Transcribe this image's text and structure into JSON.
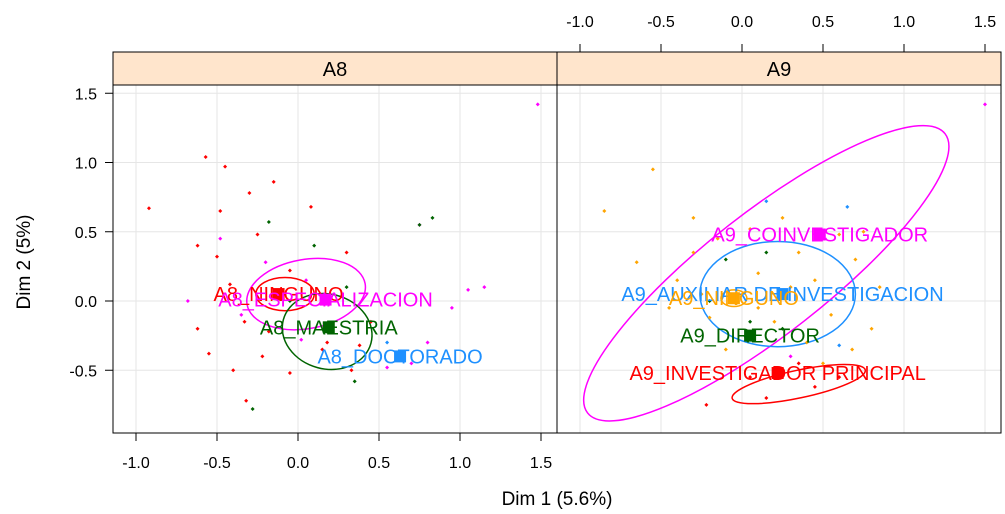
{
  "chart_data": {
    "type": "scatter",
    "xlabel": "Dim 1 (5.6%)",
    "ylabel": "Dim 2 (5%)",
    "grid": true,
    "panels": [
      {
        "name": "A8",
        "xlim": [
          -1.1,
          1.6
        ],
        "ylim": [
          -0.9,
          1.6
        ],
        "x_ticks": [
          -1.0,
          -0.5,
          0.0,
          0.5,
          1.0,
          1.5
        ],
        "x_tick_labels": [
          "-1.0",
          "-0.5",
          "0.0",
          "0.5",
          "1.0",
          "1.5"
        ],
        "x_ticks_position": "bottom",
        "categories": [
          {
            "label": "A8_NINGUNO",
            "x": -0.12,
            "y": 0.05,
            "color": "#ff0000",
            "ellipse": {
              "cx": -0.08,
              "cy": 0.05,
              "rx": 0.18,
              "ry": 0.12,
              "rot": 0
            }
          },
          {
            "label": "A8_ESPECIALIZACION",
            "x": 0.17,
            "y": 0.01,
            "color": "#ff00ff",
            "ellipse": {
              "cx": 0.05,
              "cy": 0.05,
              "rx": 0.37,
              "ry": 0.25,
              "rot": -10
            }
          },
          {
            "label": "A8_MAESTRIA",
            "x": 0.19,
            "y": -0.19,
            "color": "#006400",
            "ellipse": {
              "cx": 0.18,
              "cy": -0.22,
              "rx": 0.28,
              "ry": 0.27,
              "rot": 15
            }
          },
          {
            "label": "A8_DOCTORADO",
            "x": 0.63,
            "y": -0.4,
            "color": "#1e90ff",
            "ellipse": null
          }
        ],
        "points": [
          {
            "x": -0.92,
            "y": 0.67,
            "c": 0
          },
          {
            "x": -0.57,
            "y": 1.04,
            "c": 0
          },
          {
            "x": -0.45,
            "y": 0.97,
            "c": 0
          },
          {
            "x": -0.48,
            "y": 0.65,
            "c": 0
          },
          {
            "x": -0.3,
            "y": 0.78,
            "c": 0
          },
          {
            "x": -0.15,
            "y": 0.86,
            "c": 0
          },
          {
            "x": -0.62,
            "y": 0.4,
            "c": 0
          },
          {
            "x": -0.5,
            "y": 0.32,
            "c": 0
          },
          {
            "x": -0.25,
            "y": 0.48,
            "c": 0
          },
          {
            "x": 0.08,
            "y": 0.68,
            "c": 0
          },
          {
            "x": 0.3,
            "y": 0.35,
            "c": 0
          },
          {
            "x": -0.55,
            "y": -0.38,
            "c": 0
          },
          {
            "x": -0.4,
            "y": -0.5,
            "c": 0
          },
          {
            "x": -0.22,
            "y": -0.4,
            "c": 0
          },
          {
            "x": -0.33,
            "y": -0.15,
            "c": 0
          },
          {
            "x": -0.05,
            "y": -0.52,
            "c": 0
          },
          {
            "x": 0.15,
            "y": -0.35,
            "c": 0
          },
          {
            "x": 0.33,
            "y": -0.5,
            "c": 0
          },
          {
            "x": -0.32,
            "y": -0.72,
            "c": 0
          },
          {
            "x": 0.18,
            "y": -0.3,
            "c": 0
          },
          {
            "x": -0.05,
            "y": 0.22,
            "c": 0
          },
          {
            "x": -0.42,
            "y": 0.12,
            "c": 0
          },
          {
            "x": 0.45,
            "y": -0.15,
            "c": 0
          },
          {
            "x": 0.38,
            "y": -0.32,
            "c": 0
          },
          {
            "x": -0.62,
            "y": -0.2,
            "c": 0
          },
          {
            "x": -0.18,
            "y": -0.22,
            "c": 0
          },
          {
            "x": -0.48,
            "y": 0.45,
            "c": 1
          },
          {
            "x": -0.2,
            "y": 0.28,
            "c": 1
          },
          {
            "x": -0.68,
            "y": 0.0,
            "c": 1
          },
          {
            "x": -0.35,
            "y": -0.1,
            "c": 1
          },
          {
            "x": 0.02,
            "y": -0.28,
            "c": 1
          },
          {
            "x": 0.05,
            "y": 0.15,
            "c": 1
          },
          {
            "x": 0.7,
            "y": -0.45,
            "c": 1
          },
          {
            "x": 0.8,
            "y": -0.3,
            "c": 1
          },
          {
            "x": 0.95,
            "y": -0.05,
            "c": 1
          },
          {
            "x": 1.05,
            "y": 0.08,
            "c": 1
          },
          {
            "x": 1.15,
            "y": 0.1,
            "c": 1
          },
          {
            "x": 0.55,
            "y": -0.48,
            "c": 1
          },
          {
            "x": 0.75,
            "y": 0.55,
            "c": 1
          },
          {
            "x": 1.48,
            "y": 1.42,
            "c": 1
          },
          {
            "x": -0.18,
            "y": 0.57,
            "c": 2
          },
          {
            "x": 0.83,
            "y": 0.6,
            "c": 2
          },
          {
            "x": 0.75,
            "y": 0.55,
            "c": 2
          },
          {
            "x": 0.1,
            "y": 0.4,
            "c": 2
          },
          {
            "x": -0.28,
            "y": -0.78,
            "c": 2
          },
          {
            "x": 0.35,
            "y": -0.58,
            "c": 2
          },
          {
            "x": 0.3,
            "y": 0.1,
            "c": 2
          },
          {
            "x": -0.05,
            "y": 0.0,
            "c": 2
          },
          {
            "x": 0.55,
            "y": -0.3,
            "c": 3
          }
        ]
      },
      {
        "name": "A9",
        "xlim": [
          -1.1,
          1.6
        ],
        "ylim": [
          -0.9,
          1.6
        ],
        "x_ticks": [
          -1.0,
          -0.5,
          0.0,
          0.5,
          1.0,
          1.5
        ],
        "x_tick_labels": [
          "-1.0",
          "-0.5",
          "0.0",
          "0.5",
          "1.0",
          "1.5"
        ],
        "x_ticks_position": "top",
        "categories": [
          {
            "label": "A9_COINVESTIGADOR",
            "x": 0.48,
            "y": 0.48,
            "color": "#ff00ff",
            "ellipse": {
              "cx": 0.15,
              "cy": 0.2,
              "rx": 1.4,
              "ry": 0.44,
              "rot": -38
            }
          },
          {
            "label": "A9_AUXILIAR DE INVESTIGACION",
            "x": 0.25,
            "y": 0.05,
            "color": "#1e90ff",
            "ellipse": {
              "cx": 0.22,
              "cy": 0.05,
              "rx": 0.48,
              "ry": 0.38,
              "rot": 0
            }
          },
          {
            "label": "A9_NINGUNO",
            "x": -0.05,
            "y": 0.02,
            "color": "#ffa500",
            "ellipse": {
              "cx": -0.05,
              "cy": 0.02,
              "rx": 0.08,
              "ry": 0.06,
              "rot": 0
            }
          },
          {
            "label": "A9_DIRECTOR",
            "x": 0.05,
            "y": -0.25,
            "color": "#006400",
            "ellipse": null
          },
          {
            "label": "A9_INVESTIGADOR PRINCIPAL",
            "x": 0.22,
            "y": -0.52,
            "color": "#ff0000",
            "ellipse": {
              "cx": 0.35,
              "cy": -0.6,
              "rx": 0.42,
              "ry": 0.1,
              "rot": -12
            }
          }
        ],
        "points": [
          {
            "x": 0.15,
            "y": 0.72,
            "c": 1
          },
          {
            "x": 0.65,
            "y": 0.68,
            "c": 1
          },
          {
            "x": 0.6,
            "y": -0.32,
            "c": 1
          },
          {
            "x": -0.85,
            "y": 0.65,
            "c": 2
          },
          {
            "x": -0.55,
            "y": 0.95,
            "c": 2
          },
          {
            "x": -0.3,
            "y": 0.6,
            "c": 2
          },
          {
            "x": -0.65,
            "y": 0.28,
            "c": 2
          },
          {
            "x": -0.4,
            "y": 0.15,
            "c": 2
          },
          {
            "x": -0.3,
            "y": 0.35,
            "c": 2
          },
          {
            "x": -0.2,
            "y": -0.12,
            "c": 2
          },
          {
            "x": 0.1,
            "y": 0.2,
            "c": 2
          },
          {
            "x": 0.3,
            "y": 0.1,
            "c": 2
          },
          {
            "x": 0.45,
            "y": 0.15,
            "c": 2
          },
          {
            "x": 0.55,
            "y": -0.1,
            "c": 2
          },
          {
            "x": 0.4,
            "y": -0.3,
            "c": 2
          },
          {
            "x": 0.2,
            "y": -0.15,
            "c": 2
          },
          {
            "x": -0.1,
            "y": -0.35,
            "c": 2
          },
          {
            "x": 0.7,
            "y": 0.3,
            "c": 2
          },
          {
            "x": 0.8,
            "y": -0.2,
            "c": 2
          },
          {
            "x": 0.6,
            "y": 0.48,
            "c": 2
          },
          {
            "x": -0.45,
            "y": -0.05,
            "c": 2
          },
          {
            "x": -0.15,
            "y": 0.45,
            "c": 2
          },
          {
            "x": 0.05,
            "y": 0.52,
            "c": 2
          },
          {
            "x": 0.25,
            "y": 0.6,
            "c": 2
          },
          {
            "x": 0.85,
            "y": 0.1,
            "c": 2
          },
          {
            "x": 0.5,
            "y": -0.45,
            "c": 2
          },
          {
            "x": -0.25,
            "y": 0.05,
            "c": 2
          },
          {
            "x": 0.35,
            "y": 0.35,
            "c": 2
          },
          {
            "x": 0.68,
            "y": -0.35,
            "c": 2
          },
          {
            "x": 0.1,
            "y": -0.05,
            "c": 2
          },
          {
            "x": 0.75,
            "y": 0.5,
            "c": 2
          },
          {
            "x": 0.15,
            "y": 0.35,
            "c": 3
          },
          {
            "x": 0.05,
            "y": -0.15,
            "c": 3
          },
          {
            "x": -0.1,
            "y": 0.3,
            "c": 3
          },
          {
            "x": -0.2,
            "y": 0.0,
            "c": 3
          },
          {
            "x": 0.25,
            "y": -0.2,
            "c": 3
          },
          {
            "x": -0.22,
            "y": -0.75,
            "c": 4
          },
          {
            "x": 0.05,
            "y": -0.55,
            "c": 4
          },
          {
            "x": 0.45,
            "y": -0.62,
            "c": 4
          },
          {
            "x": 0.35,
            "y": -0.45,
            "c": 4
          },
          {
            "x": 0.15,
            "y": -0.7,
            "c": 4
          },
          {
            "x": 0.6,
            "y": -0.55,
            "c": 4
          },
          {
            "x": 1.5,
            "y": 1.42,
            "c": 0
          },
          {
            "x": 0.3,
            "y": -0.4,
            "c": 0
          }
        ]
      }
    ]
  }
}
